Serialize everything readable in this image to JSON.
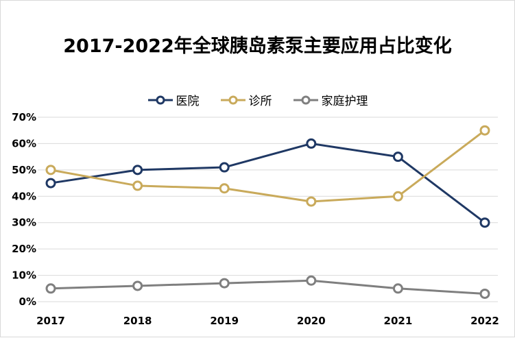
{
  "chart_data": {
    "type": "line",
    "title": "2017-2022年全球胰岛素泵主要应用占比变化",
    "categories": [
      "2017",
      "2018",
      "2019",
      "2020",
      "2021",
      "2022"
    ],
    "ylim": [
      0,
      70
    ],
    "yticks": [
      "0%",
      "10%",
      "20%",
      "30%",
      "40%",
      "50%",
      "60%",
      "70%"
    ],
    "grid": true,
    "legend_position": "top",
    "series": [
      {
        "name": "医院",
        "color": "#1f3864",
        "values": [
          45,
          50,
          51,
          60,
          55,
          30
        ]
      },
      {
        "name": "诊所",
        "color": "#c9aa5b",
        "values": [
          50,
          44,
          43,
          38,
          40,
          65
        ]
      },
      {
        "name": "家庭护理",
        "color": "#7f7f7f",
        "values": [
          5,
          6,
          7,
          8,
          5,
          3
        ]
      }
    ]
  }
}
